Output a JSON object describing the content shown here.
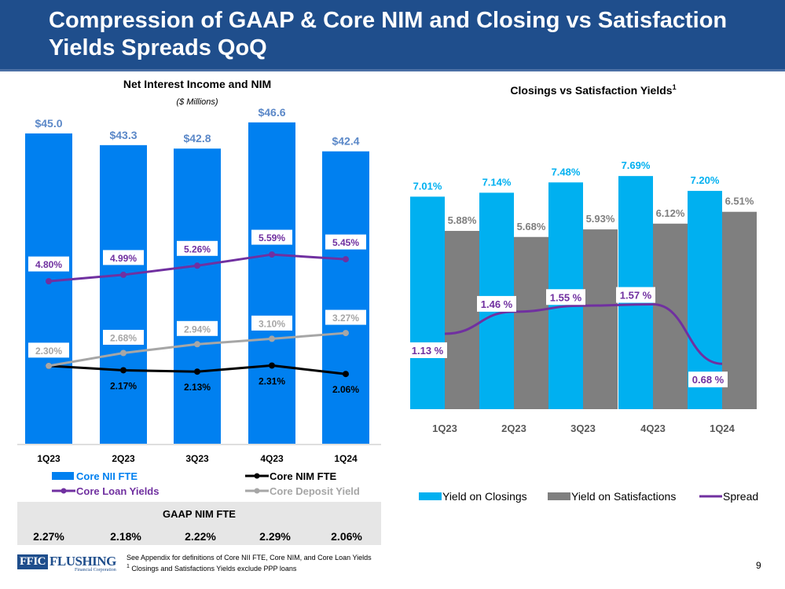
{
  "title": "Compression of GAAP & Core NIM and Closing vs Satisfaction Yields Spreads QoQ",
  "chart_data": [
    {
      "type": "bar",
      "title": "Net Interest Income and NIM",
      "subtitle": "($ Millions)",
      "categories": [
        "1Q23",
        "2Q23",
        "3Q23",
        "4Q23",
        "1Q24"
      ],
      "series": [
        {
          "name": "Core NII FTE",
          "kind": "bar",
          "color": "#0080f0",
          "values": [
            45.0,
            43.3,
            42.8,
            46.6,
            42.4
          ],
          "labels": [
            "$45.0",
            "$43.3",
            "$42.8",
            "$46.6",
            "$42.4"
          ]
        },
        {
          "name": "Core NIM FTE",
          "kind": "line",
          "color": "#000000",
          "values": [
            2.3,
            2.17,
            2.13,
            2.31,
            2.06
          ],
          "labels": [
            "2.30%",
            "2.17%",
            "2.13%",
            "2.31%",
            "2.06%"
          ]
        },
        {
          "name": "Core Loan Yields",
          "kind": "line",
          "color": "#7030a0",
          "values": [
            4.8,
            4.99,
            5.26,
            5.59,
            5.45
          ],
          "labels": [
            "4.80%",
            "4.99%",
            "5.26%",
            "5.59%",
            "5.45%"
          ]
        },
        {
          "name": "Core Deposit Yield",
          "kind": "line",
          "color": "#a6a6a6",
          "values": [
            2.3,
            2.68,
            2.94,
            3.1,
            3.27
          ],
          "labels": [
            "2.30%",
            "2.68%",
            "2.94%",
            "3.10%",
            "3.27%"
          ]
        }
      ],
      "legend": [
        "Core NII FTE",
        "Core NIM FTE",
        "Core Loan Yields",
        "Core Deposit Yield"
      ]
    },
    {
      "type": "bar",
      "title": "Closings vs Satisfaction Yields",
      "title_superscript": "1",
      "categories": [
        "1Q23",
        "2Q23",
        "3Q23",
        "4Q23",
        "1Q24"
      ],
      "series": [
        {
          "name": "Yield on Closings",
          "kind": "bar",
          "color": "#00b0f0",
          "values": [
            7.01,
            7.14,
            7.48,
            7.69,
            7.2
          ],
          "labels": [
            "7.01%",
            "7.14%",
            "7.48%",
            "7.69%",
            "7.20%"
          ]
        },
        {
          "name": "Yield on Satisfactions",
          "kind": "bar",
          "color": "#7f7f7f",
          "values": [
            5.88,
            5.68,
            5.93,
            6.12,
            6.51
          ],
          "labels": [
            "5.88%",
            "5.68%",
            "5.93%",
            "6.12%",
            "6.51%"
          ]
        },
        {
          "name": "Spread",
          "kind": "line",
          "color": "#7030a0",
          "values": [
            1.13,
            1.46,
            1.55,
            1.57,
            0.68
          ],
          "labels": [
            "1.13 %",
            "1.46 %",
            "1.55 %",
            "1.57 %",
            "0.68 %"
          ]
        }
      ],
      "legend": [
        "Yield on Closings",
        "Yield on Satisfactions",
        "Spread"
      ]
    }
  ],
  "gaap": {
    "title": "GAAP NIM FTE",
    "values": [
      "2.27%",
      "2.18%",
      "2.22%",
      "2.29%",
      "2.06%"
    ]
  },
  "logo": {
    "mark": "FFIC",
    "name": "FLUSHING",
    "sub": "Financial Corporation"
  },
  "footnote": {
    "line1": "See Appendix for definitions of Core NII FTE, Core NIM, and Core Loan Yields",
    "line2_sup": "1",
    "line2": " Closings and Satisfactions Yields exclude PPP loans"
  },
  "page_number": "9"
}
